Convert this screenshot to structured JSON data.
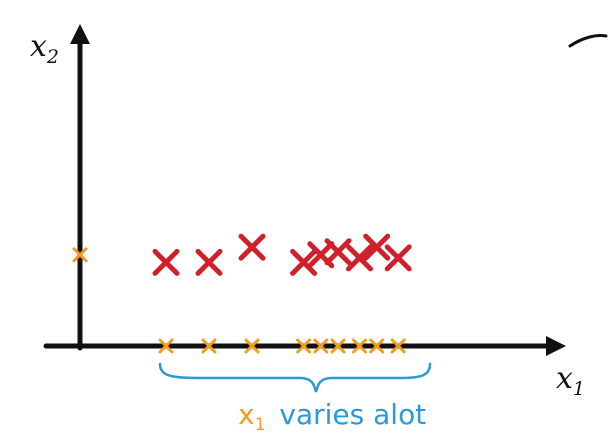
{
  "axes": {
    "x_label": "x",
    "x_sub": "1",
    "y_label": "x",
    "y_sub": "2",
    "color": "#111111"
  },
  "annotation": {
    "var": "x",
    "var_sub": "1",
    "text": "varies alot",
    "var_color": "#f39c1e",
    "text_color": "#2a9ad8",
    "brace_color": "#2a9ad8"
  },
  "chart_data": {
    "type": "scatter",
    "series": [
      {
        "color": "#d0202a",
        "points": [
          [
            1.0,
            0.55
          ],
          [
            1.5,
            0.55
          ],
          [
            2.0,
            0.65
          ],
          [
            2.6,
            0.55
          ],
          [
            2.8,
            0.6
          ],
          [
            3.0,
            0.62
          ],
          [
            3.25,
            0.58
          ],
          [
            3.45,
            0.65
          ],
          [
            3.7,
            0.58
          ]
        ]
      },
      {
        "color": "#f39c1e",
        "points": [
          [
            1.0,
            0
          ],
          [
            1.5,
            0
          ],
          [
            2.0,
            0
          ],
          [
            2.6,
            0
          ],
          [
            2.8,
            0
          ],
          [
            3.0,
            0
          ],
          [
            3.25,
            0
          ],
          [
            3.45,
            0
          ],
          [
            3.7,
            0
          ]
        ]
      },
      {
        "color": "#f39c1e",
        "points": [
          [
            0,
            0.6
          ]
        ]
      }
    ]
  }
}
